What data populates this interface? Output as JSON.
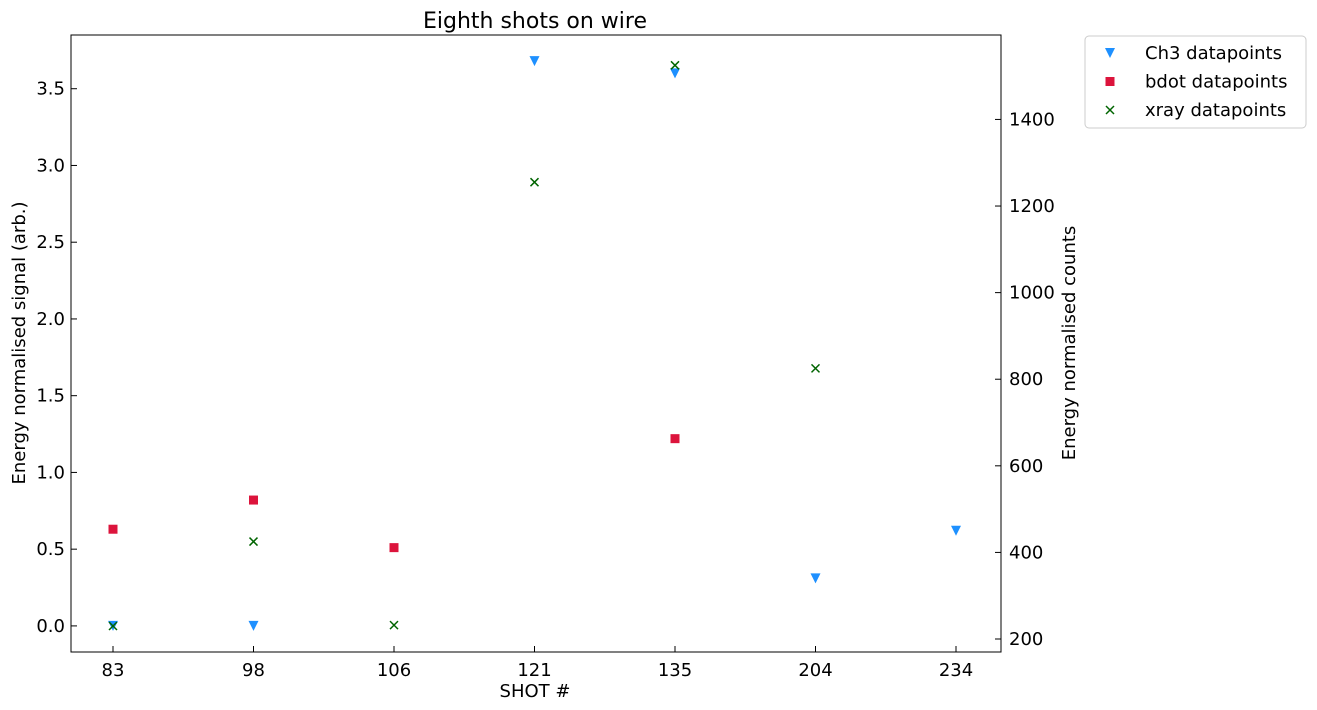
{
  "chart_data": {
    "type": "scatter",
    "title": "Eighth shots on wire",
    "xlabel": "SHOT #",
    "ylabel_left": "Energy normalised signal (arb.)",
    "ylabel_right": "Energy normalised counts",
    "categories": [
      "83",
      "98",
      "106",
      "121",
      "135",
      "204",
      "234"
    ],
    "ylim_left": [
      -0.17,
      3.85
    ],
    "ylim_right": [
      170,
      1595
    ],
    "yticks_left": [
      "0.0",
      "0.5",
      "1.0",
      "1.5",
      "2.0",
      "2.5",
      "3.0",
      "3.5"
    ],
    "yticks_left_values": [
      0.0,
      0.5,
      1.0,
      1.5,
      2.0,
      2.5,
      3.0,
      3.5
    ],
    "yticks_right": [
      "200",
      "400",
      "600",
      "800",
      "1000",
      "1200",
      "1400"
    ],
    "yticks_right_values": [
      200,
      400,
      600,
      800,
      1000,
      1200,
      1400
    ],
    "grid": false,
    "legend_position": "outside-top-right",
    "series": [
      {
        "name": "Ch3 datapoints",
        "axis": "left",
        "marker": "triangle-down",
        "color": "#1E90FF",
        "values": [
          0.0,
          0.0,
          null,
          3.68,
          3.6,
          0.31,
          0.62
        ]
      },
      {
        "name": "bdot datapoints",
        "axis": "left",
        "marker": "square",
        "color": "#DC143C",
        "values": [
          0.63,
          0.82,
          0.51,
          null,
          1.22,
          null,
          null
        ]
      },
      {
        "name": "xray datapoints",
        "axis": "right",
        "marker": "x",
        "color": "#006400",
        "values": [
          230,
          425,
          232,
          1255,
          1525,
          825,
          null
        ]
      }
    ]
  }
}
